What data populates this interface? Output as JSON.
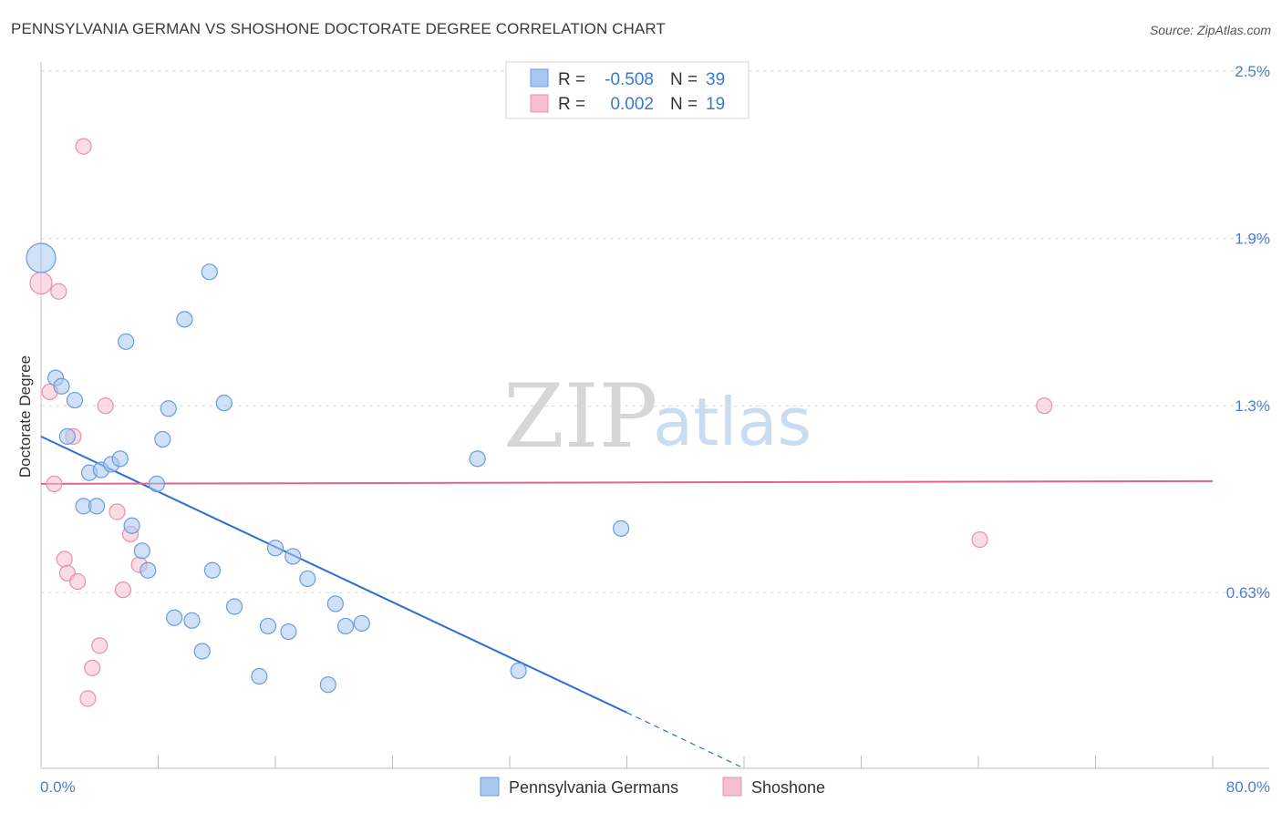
{
  "title": "PENNSYLVANIA GERMAN VS SHOSHONE DOCTORATE DEGREE CORRELATION CHART",
  "source": "Source: ZipAtlas.com",
  "watermark": {
    "zip": "ZIP",
    "atlas": "atlas"
  },
  "colors": {
    "blue_fill": "#a9c8ef",
    "blue_stroke": "#6a9be0",
    "blue_line": "#2e6fd0",
    "pink_fill": "#f6bfd0",
    "pink_stroke": "#e890ab",
    "pink_line": "#e0648e",
    "grid": "#d9d9d9",
    "tick_text": "#4a7fcf"
  },
  "legend": {
    "row1": {
      "r_label": "R =",
      "r_value": "-0.508",
      "n_label": "N =",
      "n_value": "39"
    },
    "row2": {
      "r_label": "R =",
      "r_value": "0.002",
      "n_label": "N =",
      "n_value": "19"
    }
  },
  "chart_data": {
    "type": "scatter",
    "xlabel": "",
    "ylabel": "Doctorate Degree",
    "xlim": [
      0,
      80
    ],
    "ylim": [
      0,
      2.5
    ],
    "x_tick_labels": [
      "0.0%",
      "80.0%"
    ],
    "y_ticks": [
      {
        "value": 2.5,
        "label": "2.5%"
      },
      {
        "value": 1.9,
        "label": "1.9%"
      },
      {
        "value": 1.3,
        "label": "1.3%"
      },
      {
        "value": 0.63,
        "label": "0.63%"
      }
    ],
    "legend_position": "bottom-center",
    "series": [
      {
        "name": "Pennsylvania Germans",
        "color": "blue",
        "points": [
          [
            0.0,
            1.83,
            3
          ],
          [
            1.0,
            1.4,
            1
          ],
          [
            1.4,
            1.37,
            1
          ],
          [
            2.3,
            1.32,
            1
          ],
          [
            1.8,
            1.19,
            1
          ],
          [
            3.3,
            1.06,
            1
          ],
          [
            4.1,
            1.07,
            1
          ],
          [
            4.8,
            1.09,
            1
          ],
          [
            5.4,
            1.11,
            1
          ],
          [
            7.9,
            1.02,
            1
          ],
          [
            2.9,
            0.94,
            1
          ],
          [
            3.8,
            0.94,
            1
          ],
          [
            6.2,
            0.87,
            1
          ],
          [
            6.9,
            0.78,
            1
          ],
          [
            7.3,
            0.71,
            1
          ],
          [
            5.8,
            1.53,
            1
          ],
          [
            9.8,
            1.61,
            1
          ],
          [
            11.5,
            1.78,
            1
          ],
          [
            8.3,
            1.18,
            1
          ],
          [
            8.7,
            1.29,
            1
          ],
          [
            12.5,
            1.31,
            1
          ],
          [
            11.7,
            0.71,
            1
          ],
          [
            9.1,
            0.54,
            1
          ],
          [
            10.3,
            0.53,
            1
          ],
          [
            13.2,
            0.58,
            1
          ],
          [
            15.5,
            0.51,
            1
          ],
          [
            16.9,
            0.49,
            1
          ],
          [
            16.0,
            0.79,
            1
          ],
          [
            17.2,
            0.76,
            1
          ],
          [
            18.2,
            0.68,
            1
          ],
          [
            20.1,
            0.59,
            1
          ],
          [
            20.8,
            0.51,
            1
          ],
          [
            21.9,
            0.52,
            1
          ],
          [
            11.0,
            0.42,
            1
          ],
          [
            14.9,
            0.33,
            1
          ],
          [
            19.6,
            0.3,
            1
          ],
          [
            29.8,
            1.11,
            1
          ],
          [
            39.6,
            0.86,
            1
          ],
          [
            32.6,
            0.35,
            1
          ]
        ]
      },
      {
        "name": "Shoshone",
        "color": "pink",
        "points": [
          [
            2.9,
            2.23,
            1
          ],
          [
            0.0,
            1.74,
            2
          ],
          [
            1.2,
            1.71,
            1
          ],
          [
            0.6,
            1.35,
            1
          ],
          [
            4.4,
            1.3,
            1
          ],
          [
            2.2,
            1.19,
            1
          ],
          [
            0.9,
            1.02,
            1
          ],
          [
            5.2,
            0.92,
            1
          ],
          [
            6.1,
            0.84,
            1
          ],
          [
            1.6,
            0.75,
            1
          ],
          [
            1.8,
            0.7,
            1
          ],
          [
            2.5,
            0.67,
            1
          ],
          [
            6.7,
            0.73,
            1
          ],
          [
            5.6,
            0.64,
            1
          ],
          [
            4.0,
            0.44,
            1
          ],
          [
            3.5,
            0.36,
            1
          ],
          [
            3.2,
            0.25,
            1
          ],
          [
            68.5,
            1.3,
            1
          ],
          [
            64.1,
            0.82,
            1
          ]
        ]
      }
    ],
    "trendlines": [
      {
        "series": "Pennsylvania Germans",
        "x0": 0,
        "y0": 1.19,
        "x1": 40,
        "y1": 0.2,
        "dashed_to_x": 48,
        "dashed_to_y": 0.0
      },
      {
        "series": "Shoshone",
        "x0": 0,
        "y0": 1.02,
        "x1": 80,
        "y1": 1.03
      }
    ]
  }
}
